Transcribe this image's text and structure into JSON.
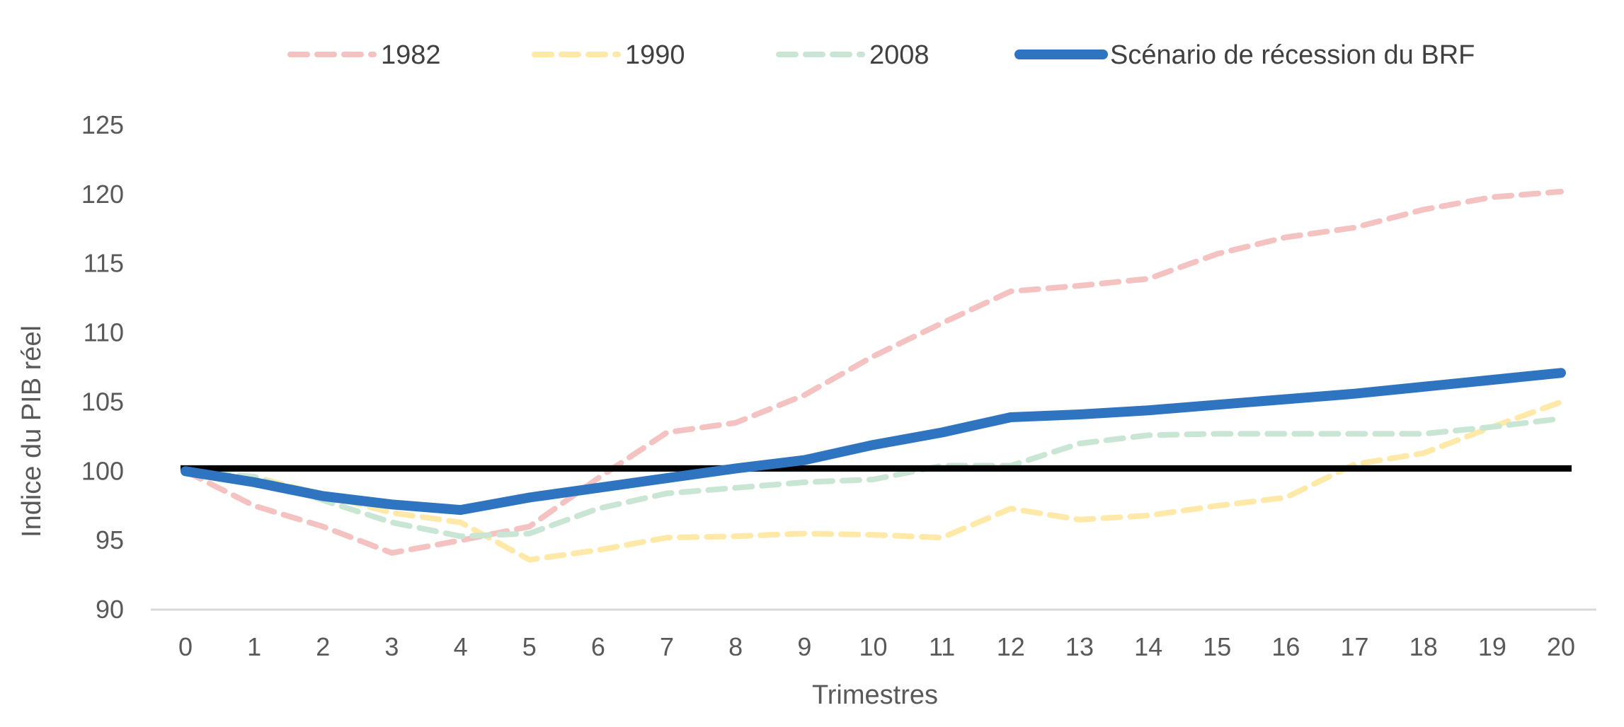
{
  "chart_data": {
    "type": "line",
    "title": "",
    "xlabel": "Trimestres",
    "ylabel": "Indice du PIB réel",
    "x": [
      0,
      1,
      2,
      3,
      4,
      5,
      6,
      7,
      8,
      9,
      10,
      11,
      12,
      13,
      14,
      15,
      16,
      17,
      18,
      19,
      20
    ],
    "ylim": [
      90,
      125
    ],
    "yticks": [
      90,
      95,
      100,
      105,
      110,
      115,
      120,
      125
    ],
    "grid": false,
    "legend_position": "top",
    "reference_line": {
      "value": 100.2,
      "color": "#000000"
    },
    "series": [
      {
        "name": "1982",
        "style": "dashed",
        "color": "#F4C2C1",
        "values": [
          100,
          97.5,
          96,
          94.1,
          95,
          96,
          99.5,
          102.8,
          103.5,
          105.5,
          108.3,
          110.7,
          113,
          113.4,
          113.9,
          115.7,
          116.9,
          117.6,
          118.9,
          119.8,
          120.2
        ]
      },
      {
        "name": "1990",
        "style": "dashed",
        "color": "#FFE9A8",
        "values": [
          100,
          99.6,
          98.3,
          97,
          96.3,
          93.6,
          94.3,
          95.2,
          95.3,
          95.5,
          95.4,
          95.2,
          97.3,
          96.5,
          96.8,
          97.5,
          98.1,
          100.5,
          101.3,
          103.2,
          105
        ]
      },
      {
        "name": "2008",
        "style": "dashed",
        "color": "#C9E5D3",
        "values": [
          100,
          99.6,
          97.9,
          96.3,
          95.3,
          95.5,
          97.3,
          98.4,
          98.8,
          99.2,
          99.4,
          100.4,
          100.4,
          102,
          102.6,
          102.7,
          102.7,
          102.7,
          102.7,
          103.2,
          103.8
        ]
      },
      {
        "name": "Scénario de récession du BRF",
        "style": "solid",
        "color": "#2E74C0",
        "values": [
          100,
          99.2,
          98.2,
          97.6,
          97.2,
          98.1,
          98.8,
          99.5,
          100.2,
          100.8,
          101.9,
          102.8,
          103.9,
          104.1,
          104.4,
          104.8,
          105.2,
          105.6,
          106.1,
          106.6,
          107.1
        ]
      }
    ]
  }
}
